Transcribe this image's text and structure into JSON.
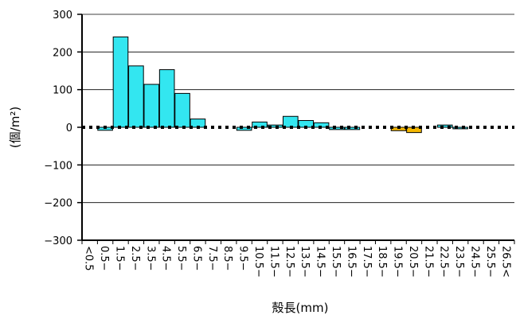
{
  "chart_data": {
    "type": "bar",
    "title": "",
    "xlabel": "殻長(mm)",
    "ylabel": "(個/m²)",
    "ylim": [
      -300,
      300
    ],
    "yticks": [
      -300,
      -200,
      -100,
      0,
      100,
      200,
      300
    ],
    "ytick_labels": [
      "−300",
      "−200",
      "−100",
      "0",
      "100",
      "200",
      "300"
    ],
    "grid": true,
    "legend": "none",
    "colors": {
      "positive": "#33e6f0",
      "negative": "#f5b800",
      "edge": "#000000",
      "dots": "#000000"
    },
    "categories": [
      "<0.5",
      "0.5−",
      "1.5−",
      "2.5−",
      "3.5−",
      "4.5−",
      "5.5−",
      "6.5−",
      "7.5−",
      "8.5−",
      "9.5−",
      "10.5−",
      "11.5−",
      "12.5−",
      "13.5−",
      "14.5−",
      "15.5−",
      "16.5−",
      "17.5−",
      "18.5−",
      "19.5−",
      "20.5−",
      "21.5−",
      "22.5−",
      "23.5−",
      "24.5−",
      "25.5−",
      "26.5<"
    ],
    "values": [
      0,
      -8,
      240,
      163,
      114,
      153,
      90,
      22,
      0,
      0,
      -8,
      14,
      6,
      29,
      18,
      12,
      -6,
      -6,
      0,
      0,
      -9,
      -14,
      0,
      6,
      -4,
      0,
      0,
      0
    ],
    "bar_colors": [
      "pos",
      "pos",
      "pos",
      "pos",
      "pos",
      "pos",
      "pos",
      "pos",
      "pos",
      "pos",
      "pos",
      "pos",
      "pos",
      "pos",
      "pos",
      "pos",
      "pos",
      "pos",
      "pos",
      "pos",
      "neg",
      "neg",
      "pos",
      "pos",
      "pos",
      "pos",
      "pos",
      "pos"
    ]
  }
}
